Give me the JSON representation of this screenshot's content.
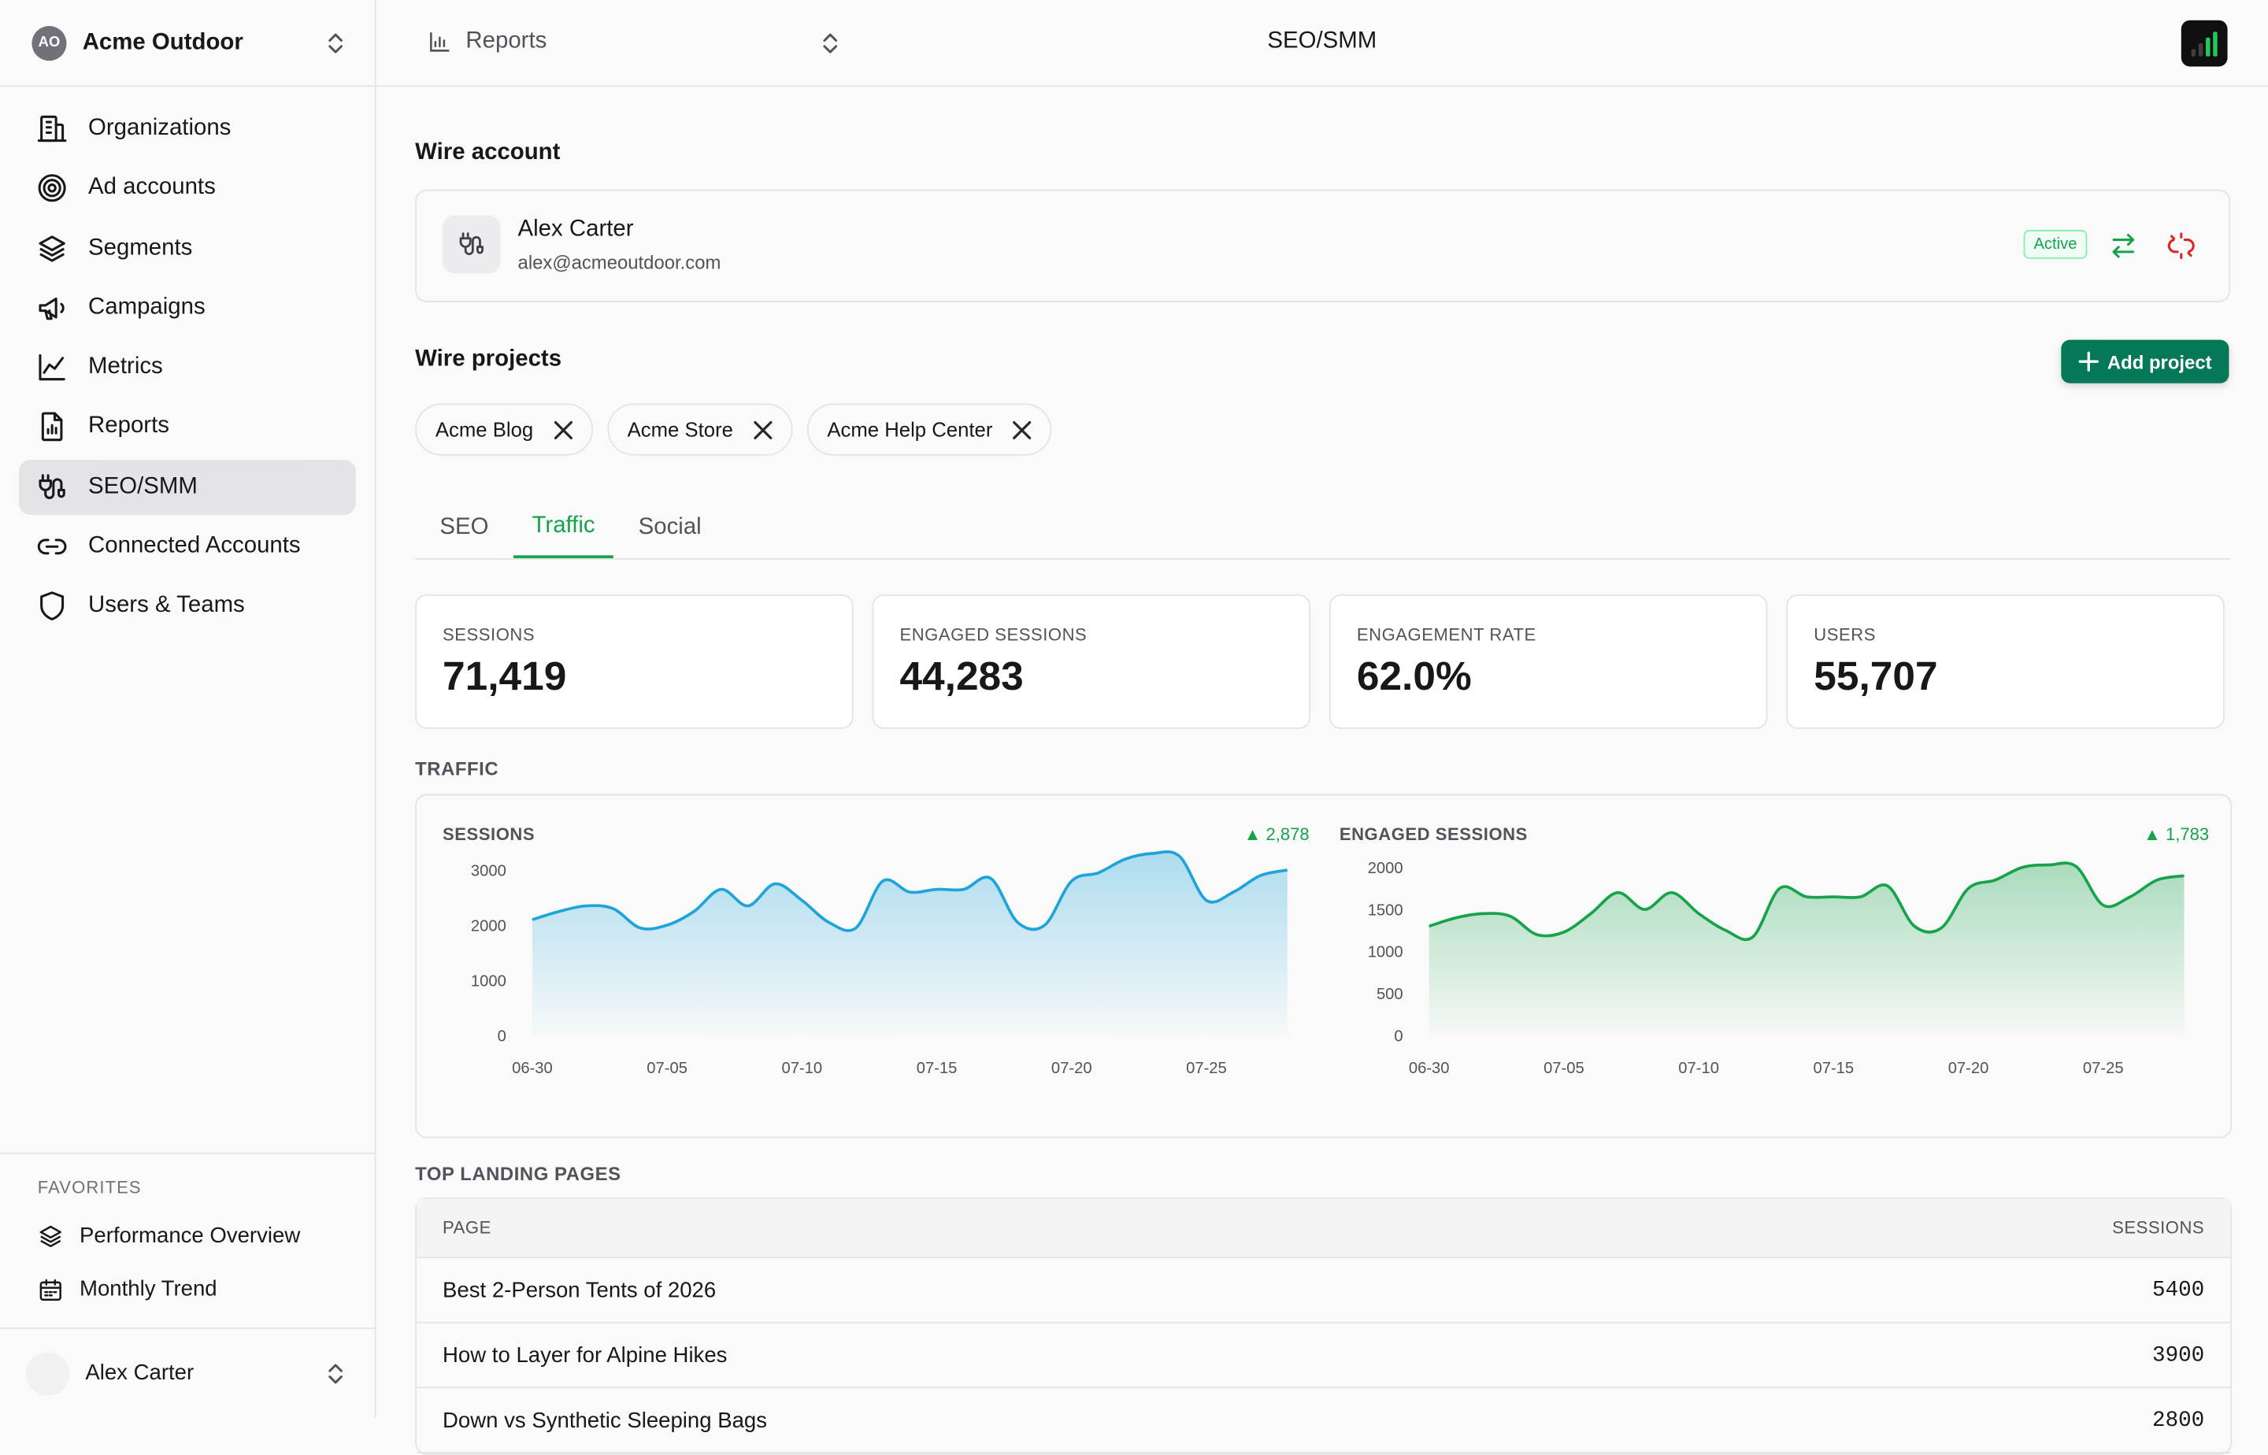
{
  "org": {
    "initials": "AO",
    "name": "Acme Outdoor"
  },
  "nav": [
    {
      "label": "Organizations",
      "icon": "building-icon"
    },
    {
      "label": "Ad accounts",
      "icon": "target-icon"
    },
    {
      "label": "Segments",
      "icon": "layers-icon"
    },
    {
      "label": "Campaigns",
      "icon": "megaphone-icon"
    },
    {
      "label": "Metrics",
      "icon": "line-chart-icon"
    },
    {
      "label": "Reports",
      "icon": "report-icon"
    },
    {
      "label": "SEO/SMM",
      "icon": "plug-icon",
      "active": true
    },
    {
      "label": "Connected Accounts",
      "icon": "link-icon"
    },
    {
      "label": "Users & Teams",
      "icon": "shield-icon"
    }
  ],
  "favorites": {
    "title": "FAVORITES",
    "items": [
      {
        "label": "Performance Overview",
        "icon": "layers-icon"
      },
      {
        "label": "Monthly Trend",
        "icon": "calendar-icon"
      }
    ]
  },
  "user": {
    "name": "Alex Carter"
  },
  "topbar": {
    "breadcrumb": "Reports",
    "title": "SEO/SMM"
  },
  "wire_account": {
    "heading": "Wire account",
    "name": "Alex Carter",
    "email": "alex@acmeoutdoor.com",
    "status": "Active"
  },
  "wire_projects": {
    "heading": "Wire projects",
    "add_label": "Add project",
    "chips": [
      "Acme Blog",
      "Acme Store",
      "Acme Help Center"
    ]
  },
  "tabs": [
    "SEO",
    "Traffic",
    "Social"
  ],
  "active_tab": "Traffic",
  "stats": [
    {
      "label": "SESSIONS",
      "value": "71,419"
    },
    {
      "label": "ENGAGED SESSIONS",
      "value": "44,283"
    },
    {
      "label": "ENGAGEMENT RATE",
      "value": "62.0%"
    },
    {
      "label": "USERS",
      "value": "55,707"
    }
  ],
  "traffic_heading": "TRAFFIC",
  "colors": {
    "accent": "#16a34a",
    "sessions_line": "#1ea4d8",
    "engaged_line": "#16a34a",
    "button": "#047857"
  },
  "chart_data": [
    {
      "type": "area",
      "title": "SESSIONS",
      "delta": "▲ 2,878",
      "x_ticks": [
        "06-30",
        "07-05",
        "07-10",
        "07-15",
        "07-20",
        "07-25"
      ],
      "x": [
        "06-30",
        "07-01",
        "07-02",
        "07-03",
        "07-04",
        "07-05",
        "07-06",
        "07-07",
        "07-08",
        "07-09",
        "07-10",
        "07-11",
        "07-12",
        "07-13",
        "07-14",
        "07-15",
        "07-16",
        "07-17",
        "07-18",
        "07-19",
        "07-20",
        "07-21",
        "07-22",
        "07-23",
        "07-24",
        "07-25",
        "07-26",
        "07-27",
        "07-28"
      ],
      "values": [
        2100,
        2250,
        2350,
        2300,
        1950,
        2000,
        2250,
        2650,
        2350,
        2750,
        2450,
        2050,
        1950,
        2800,
        2600,
        2650,
        2650,
        2850,
        2050,
        2000,
        2800,
        2950,
        3200,
        3300,
        3250,
        2450,
        2600,
        2900,
        3000
      ],
      "ylim": [
        0,
        3200
      ],
      "y_ticks": [
        0,
        1000,
        2000,
        3000
      ]
    },
    {
      "type": "area",
      "title": "ENGAGED SESSIONS",
      "delta": "▲ 1,783",
      "x_ticks": [
        "06-30",
        "07-05",
        "07-10",
        "07-15",
        "07-20",
        "07-25"
      ],
      "x": [
        "06-30",
        "07-01",
        "07-02",
        "07-03",
        "07-04",
        "07-05",
        "07-06",
        "07-07",
        "07-08",
        "07-09",
        "07-10",
        "07-11",
        "07-12",
        "07-13",
        "07-14",
        "07-15",
        "07-16",
        "07-17",
        "07-18",
        "07-19",
        "07-20",
        "07-21",
        "07-22",
        "07-23",
        "07-24",
        "07-25",
        "07-26",
        "07-27",
        "07-28"
      ],
      "values": [
        1300,
        1400,
        1450,
        1420,
        1200,
        1230,
        1450,
        1700,
        1500,
        1700,
        1450,
        1250,
        1170,
        1750,
        1650,
        1650,
        1650,
        1780,
        1300,
        1280,
        1750,
        1850,
        2000,
        2030,
        2010,
        1550,
        1650,
        1850,
        1900
      ],
      "ylim": [
        0,
        2100
      ],
      "y_ticks": [
        0,
        500,
        1000,
        1500,
        2000
      ]
    }
  ],
  "landing": {
    "heading": "TOP LANDING PAGES",
    "col_page": "PAGE",
    "col_sessions": "SESSIONS",
    "rows": [
      {
        "page": "Best 2-Person Tents of 2026",
        "sessions": "5400"
      },
      {
        "page": "How to Layer for Alpine Hikes",
        "sessions": "3900"
      },
      {
        "page": "Down vs Synthetic Sleeping Bags",
        "sessions": "2800"
      }
    ]
  }
}
